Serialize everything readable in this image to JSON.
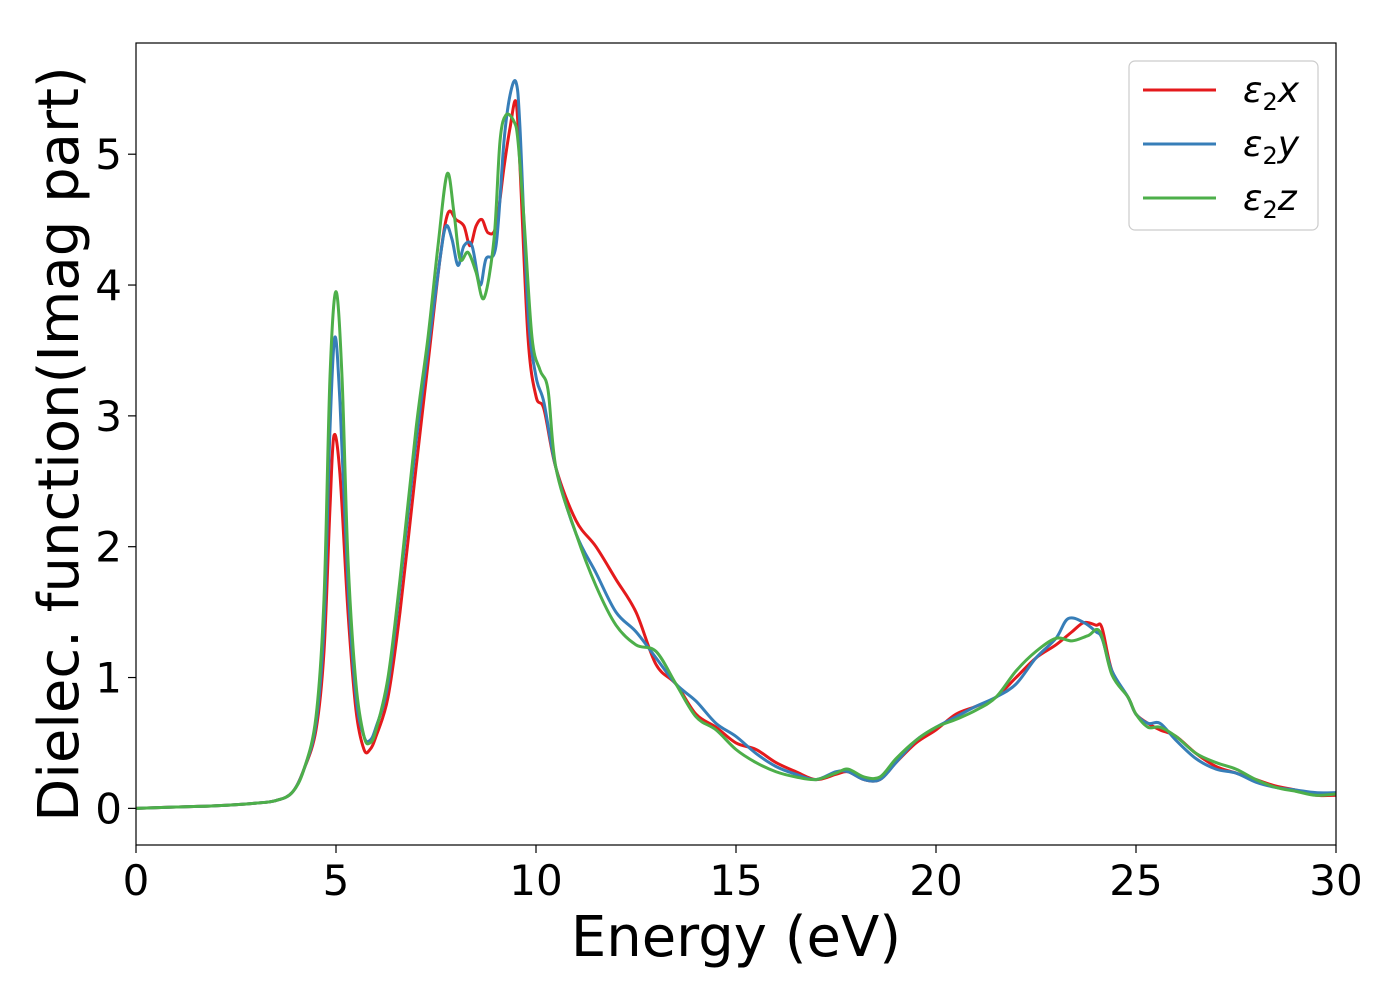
{
  "chart_data": {
    "type": "line",
    "title": "",
    "xlabel": "Energy (eV)",
    "ylabel": "Dielec. function(Imag part)",
    "xlim": [
      0,
      30
    ],
    "ylim": [
      -0.28,
      5.85
    ],
    "xticks": [
      0,
      5,
      10,
      15,
      20,
      25,
      30
    ],
    "yticks": [
      0,
      1,
      2,
      3,
      4,
      5
    ],
    "grid": false,
    "legend_position": "top-right",
    "series": [
      {
        "name": "ε2x",
        "legend": {
          "base": "ε",
          "sub": "2",
          "tail": "x"
        },
        "color": "#e41a1c",
        "x": [
          0,
          1,
          2,
          3,
          3.5,
          3.9,
          4.2,
          4.5,
          4.7,
          4.85,
          4.95,
          5.1,
          5.3,
          5.5,
          5.7,
          5.85,
          6.0,
          6.3,
          6.6,
          7.0,
          7.3,
          7.6,
          7.8,
          8.0,
          8.2,
          8.35,
          8.5,
          8.65,
          8.8,
          9.0,
          9.2,
          9.35,
          9.5,
          9.6,
          9.8,
          10.0,
          10.2,
          10.5,
          11.0,
          11.5,
          12.0,
          12.5,
          13.0,
          13.5,
          14.0,
          14.5,
          15.0,
          15.5,
          16.0,
          16.5,
          17.0,
          17.5,
          17.8,
          18.2,
          18.6,
          19.0,
          19.5,
          20.0,
          20.5,
          21.0,
          21.5,
          22.0,
          22.5,
          23.0,
          23.4,
          23.7,
          24.0,
          24.15,
          24.4,
          24.8,
          25.0,
          25.3,
          25.6,
          26.0,
          26.5,
          27.0,
          27.5,
          28.0,
          28.5,
          29.0,
          29.5,
          30.0
        ],
        "y": [
          0.0,
          0.01,
          0.02,
          0.04,
          0.06,
          0.12,
          0.3,
          0.6,
          1.2,
          2.3,
          2.85,
          2.55,
          1.5,
          0.75,
          0.45,
          0.45,
          0.55,
          0.85,
          1.5,
          2.6,
          3.4,
          4.2,
          4.55,
          4.5,
          4.45,
          4.3,
          4.45,
          4.5,
          4.4,
          4.45,
          4.9,
          5.2,
          5.4,
          4.9,
          3.6,
          3.15,
          3.05,
          2.6,
          2.2,
          2.0,
          1.75,
          1.5,
          1.1,
          0.95,
          0.72,
          0.62,
          0.5,
          0.45,
          0.35,
          0.28,
          0.22,
          0.26,
          0.28,
          0.22,
          0.22,
          0.35,
          0.5,
          0.6,
          0.72,
          0.78,
          0.85,
          1.0,
          1.15,
          1.25,
          1.35,
          1.42,
          1.4,
          1.38,
          1.05,
          0.85,
          0.72,
          0.65,
          0.6,
          0.55,
          0.42,
          0.32,
          0.27,
          0.22,
          0.17,
          0.14,
          0.1,
          0.1
        ]
      },
      {
        "name": "ε2y",
        "legend": {
          "base": "ε",
          "sub": "2",
          "tail": "y"
        },
        "color": "#377eb8",
        "x": [
          0,
          1,
          2,
          3,
          3.5,
          3.9,
          4.2,
          4.5,
          4.7,
          4.85,
          4.97,
          5.1,
          5.3,
          5.5,
          5.7,
          5.85,
          6.0,
          6.3,
          6.6,
          7.0,
          7.3,
          7.6,
          7.75,
          7.9,
          8.05,
          8.2,
          8.4,
          8.6,
          8.75,
          9.0,
          9.2,
          9.35,
          9.5,
          9.6,
          9.8,
          10.0,
          10.2,
          10.5,
          11.0,
          11.5,
          12.0,
          12.5,
          13.0,
          13.5,
          14.0,
          14.5,
          15.0,
          15.5,
          16.0,
          16.5,
          17.0,
          17.5,
          17.8,
          18.2,
          18.6,
          19.0,
          19.5,
          20.0,
          20.5,
          21.0,
          21.5,
          22.0,
          22.5,
          23.0,
          23.3,
          23.7,
          24.0,
          24.15,
          24.4,
          24.8,
          25.0,
          25.3,
          25.6,
          26.0,
          26.5,
          27.0,
          27.5,
          28.0,
          28.5,
          29.0,
          29.5,
          30.0
        ],
        "y": [
          0.0,
          0.01,
          0.02,
          0.04,
          0.06,
          0.12,
          0.3,
          0.65,
          1.4,
          2.9,
          3.6,
          3.1,
          1.7,
          0.85,
          0.55,
          0.52,
          0.62,
          0.95,
          1.7,
          2.8,
          3.5,
          4.2,
          4.45,
          4.35,
          4.15,
          4.3,
          4.3,
          4.0,
          4.2,
          4.3,
          5.1,
          5.45,
          5.55,
          5.2,
          3.8,
          3.3,
          3.1,
          2.6,
          2.1,
          1.8,
          1.5,
          1.35,
          1.15,
          0.95,
          0.82,
          0.65,
          0.55,
          0.42,
          0.32,
          0.26,
          0.22,
          0.28,
          0.28,
          0.22,
          0.22,
          0.35,
          0.52,
          0.62,
          0.7,
          0.78,
          0.85,
          0.95,
          1.15,
          1.3,
          1.45,
          1.42,
          1.35,
          1.3,
          1.05,
          0.85,
          0.72,
          0.65,
          0.65,
          0.52,
          0.38,
          0.3,
          0.27,
          0.2,
          0.16,
          0.14,
          0.12,
          0.12
        ]
      },
      {
        "name": "ε2z",
        "legend": {
          "base": "ε",
          "sub": "2",
          "tail": "z"
        },
        "color": "#4daf4a",
        "x": [
          0,
          1,
          2,
          3,
          3.5,
          3.9,
          4.2,
          4.5,
          4.7,
          4.85,
          5.0,
          5.15,
          5.3,
          5.5,
          5.7,
          5.85,
          6.0,
          6.3,
          6.6,
          7.0,
          7.3,
          7.55,
          7.78,
          7.95,
          8.1,
          8.3,
          8.5,
          8.7,
          8.95,
          9.1,
          9.25,
          9.45,
          9.55,
          9.7,
          9.9,
          10.1,
          10.3,
          10.5,
          11.0,
          11.5,
          12.0,
          12.5,
          13.0,
          13.5,
          14.0,
          14.5,
          15.0,
          15.5,
          16.0,
          16.5,
          17.0,
          17.5,
          17.8,
          18.2,
          18.6,
          19.0,
          19.5,
          20.0,
          20.5,
          21.0,
          21.5,
          22.0,
          22.5,
          23.0,
          23.4,
          23.8,
          24.1,
          24.4,
          24.8,
          25.0,
          25.3,
          25.6,
          26.0,
          26.5,
          27.0,
          27.5,
          28.0,
          28.5,
          29.0,
          29.5,
          30.0
        ],
        "y": [
          0.0,
          0.01,
          0.02,
          0.04,
          0.06,
          0.12,
          0.3,
          0.7,
          1.6,
          3.3,
          3.95,
          3.3,
          1.9,
          0.95,
          0.55,
          0.5,
          0.6,
          1.0,
          1.75,
          2.9,
          3.6,
          4.3,
          4.85,
          4.55,
          4.2,
          4.25,
          4.1,
          3.9,
          4.35,
          5.1,
          5.3,
          5.25,
          5.1,
          4.5,
          3.6,
          3.35,
          3.2,
          2.6,
          2.1,
          1.7,
          1.4,
          1.25,
          1.2,
          0.95,
          0.7,
          0.6,
          0.45,
          0.35,
          0.28,
          0.24,
          0.22,
          0.27,
          0.3,
          0.24,
          0.24,
          0.38,
          0.52,
          0.62,
          0.68,
          0.75,
          0.85,
          1.05,
          1.2,
          1.3,
          1.28,
          1.32,
          1.35,
          1.02,
          0.85,
          0.72,
          0.62,
          0.62,
          0.55,
          0.42,
          0.35,
          0.3,
          0.22,
          0.16,
          0.13,
          0.1,
          0.11
        ]
      }
    ]
  }
}
